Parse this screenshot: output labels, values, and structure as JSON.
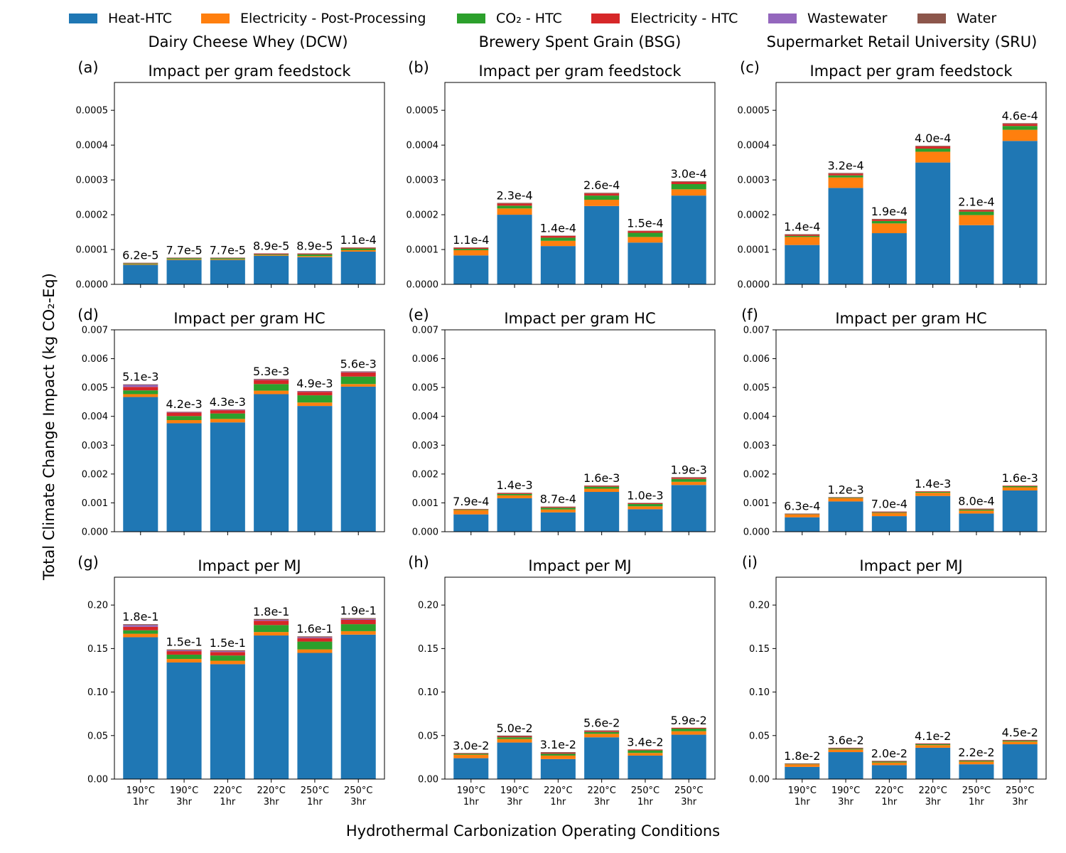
{
  "figure": {
    "ylabel": "Total Climate Change Impact (kg CO₂-Eq)",
    "xlabel": "Hydrothermal Carbonization Operating Conditions"
  },
  "legend": [
    {
      "name": "Heat-HTC",
      "color": "#1f77b4"
    },
    {
      "name": "Electricity - Post-Processing",
      "color": "#ff7f0e"
    },
    {
      "name": "CO₂ - HTC",
      "color": "#2ca02c"
    },
    {
      "name": "Electricity - HTC",
      "color": "#d62728"
    },
    {
      "name": "Wastewater",
      "color": "#9467bd"
    },
    {
      "name": "Water",
      "color": "#8c564b"
    }
  ],
  "columns": [
    "Dairy Cheese Whey (DCW)",
    "Brewery Spent Grain (BSG)",
    "Supermarket Retail University (SRU)"
  ],
  "chart_data": [
    {
      "type": "bar",
      "stacked": true,
      "panel": "(a)",
      "title": "Impact per gram feedstock",
      "categories": [
        "190°C 1hr",
        "190°C 3hr",
        "220°C 1hr",
        "220°C 3hr",
        "250°C 1hr",
        "250°C 3hr"
      ],
      "ylim": [
        0,
        0.00058
      ],
      "yticks": [
        "0.0000",
        "0.0001",
        "0.0002",
        "0.0003",
        "0.0004",
        "0.0005"
      ],
      "ytick_values": [
        0,
        0.0001,
        0.0002,
        0.0003,
        0.0004,
        0.0005
      ],
      "series": [
        {
          "name": "Heat-HTC",
          "values": [
            5.6e-05,
            7e-05,
            7e-05,
            8.2e-05,
            7.8e-05,
            9.4e-05
          ]
        },
        {
          "name": "Electricity - Post-Processing",
          "values": [
            2e-06,
            2e-06,
            2e-06,
            2e-06,
            3e-06,
            4e-06
          ]
        },
        {
          "name": "CO₂ - HTC",
          "values": [
            2e-06,
            3e-06,
            3e-06,
            2e-06,
            5e-06,
            5e-06
          ]
        },
        {
          "name": "Electricity - HTC",
          "values": [
            1e-06,
            1e-06,
            1e-06,
            2e-06,
            2e-06,
            2e-06
          ]
        },
        {
          "name": "Wastewater",
          "values": [
            0,
            0,
            0,
            0,
            0,
            0
          ]
        },
        {
          "name": "Water",
          "values": [
            1e-06,
            1e-06,
            1e-06,
            1e-06,
            1e-06,
            1e-06
          ]
        }
      ],
      "data_labels": [
        "6.2e-5",
        "7.7e-5",
        "7.7e-5",
        "8.9e-5",
        "8.9e-5",
        "1.1e-4"
      ]
    },
    {
      "type": "bar",
      "stacked": true,
      "panel": "(b)",
      "title": "Impact per gram feedstock",
      "categories": [
        "190°C 1hr",
        "190°C 3hr",
        "220°C 1hr",
        "220°C 3hr",
        "250°C 1hr",
        "250°C 3hr"
      ],
      "ylim": [
        0,
        0.00058
      ],
      "yticks": [
        "0.0000",
        "0.0001",
        "0.0002",
        "0.0003",
        "0.0004",
        "0.0005"
      ],
      "ytick_values": [
        0,
        0.0001,
        0.0002,
        0.0003,
        0.0004,
        0.0005
      ],
      "series": [
        {
          "name": "Heat-HTC",
          "values": [
            8.3e-05,
            0.0002,
            0.00011,
            0.000225,
            0.00012,
            0.000255
          ]
        },
        {
          "name": "Electricity - Post-Processing",
          "values": [
            1.5e-05,
            1.8e-05,
            1.5e-05,
            1.8e-05,
            1.6e-05,
            1.8e-05
          ]
        },
        {
          "name": "CO₂ - HTC",
          "values": [
            4e-06,
            8e-06,
            9e-06,
            1.2e-05,
            1.2e-05,
            1.5e-05
          ]
        },
        {
          "name": "Electricity - HTC",
          "values": [
            3e-06,
            6e-06,
            5e-06,
            6e-06,
            5e-06,
            6e-06
          ]
        },
        {
          "name": "Wastewater",
          "values": [
            0,
            0,
            0,
            0,
            0,
            0
          ]
        },
        {
          "name": "Water",
          "values": [
            1e-06,
            2e-06,
            1e-06,
            2e-06,
            1e-06,
            2e-06
          ]
        }
      ],
      "data_labels": [
        "1.1e-4",
        "2.3e-4",
        "1.4e-4",
        "2.6e-4",
        "1.5e-4",
        "3.0e-4"
      ]
    },
    {
      "type": "bar",
      "stacked": true,
      "panel": "(c)",
      "title": "Impact per gram feedstock",
      "categories": [
        "190°C 1hr",
        "190°C 3hr",
        "220°C 1hr",
        "220°C 3hr",
        "250°C 1hr",
        "250°C 3hr"
      ],
      "ylim": [
        0,
        0.00058
      ],
      "yticks": [
        "0.0000",
        "0.0001",
        "0.0002",
        "0.0003",
        "0.0004",
        "0.0005"
      ],
      "ytick_values": [
        0,
        0.0001,
        0.0002,
        0.0003,
        0.0004,
        0.0005
      ],
      "series": [
        {
          "name": "Heat-HTC",
          "values": [
            0.000113,
            0.000277,
            0.000147,
            0.00035,
            0.00017,
            0.000412
          ]
        },
        {
          "name": "Electricity - Post-Processing",
          "values": [
            2.3e-05,
            3e-05,
            2.8e-05,
            3.1e-05,
            2.9e-05,
            3.2e-05
          ]
        },
        {
          "name": "CO₂ - HTC",
          "values": [
            3e-06,
            6e-06,
            7e-06,
            9e-06,
            1e-05,
            1.1e-05
          ]
        },
        {
          "name": "Electricity - HTC",
          "values": [
            3e-06,
            5e-06,
            4e-06,
            6e-06,
            4e-06,
            6e-06
          ]
        },
        {
          "name": "Wastewater",
          "values": [
            0,
            0,
            0,
            0,
            0,
            0
          ]
        },
        {
          "name": "Water",
          "values": [
            2e-06,
            2e-06,
            2e-06,
            2e-06,
            2e-06,
            2e-06
          ]
        }
      ],
      "data_labels": [
        "1.4e-4",
        "3.2e-4",
        "1.9e-4",
        "4.0e-4",
        "2.1e-4",
        "4.6e-4"
      ]
    },
    {
      "type": "bar",
      "stacked": true,
      "panel": "(d)",
      "title": "Impact per gram HC",
      "categories": [
        "190°C 1hr",
        "190°C 3hr",
        "220°C 1hr",
        "220°C 3hr",
        "250°C 1hr",
        "250°C 3hr"
      ],
      "ylim": [
        0,
        0.007
      ],
      "yticks": [
        "0.000",
        "0.001",
        "0.002",
        "0.003",
        "0.004",
        "0.005",
        "0.006",
        "0.007"
      ],
      "ytick_values": [
        0,
        0.001,
        0.002,
        0.003,
        0.004,
        0.005,
        0.006,
        0.007
      ],
      "series": [
        {
          "name": "Heat-HTC",
          "values": [
            0.00467,
            0.00376,
            0.00379,
            0.00477,
            0.00436,
            0.00503
          ]
        },
        {
          "name": "Electricity - Post-Processing",
          "values": [
            0.0001,
            0.00011,
            0.00012,
            0.00012,
            0.00012,
            9e-05
          ]
        },
        {
          "name": "CO₂ - HTC",
          "values": [
            0.00013,
            0.00014,
            0.00019,
            0.00023,
            0.00025,
            0.00026
          ]
        },
        {
          "name": "Electricity - HTC",
          "values": [
            0.00012,
            0.00012,
            0.00011,
            0.00014,
            0.00012,
            0.00014
          ]
        },
        {
          "name": "Wastewater",
          "values": [
            7e-05,
            2e-05,
            2e-05,
            2e-05,
            2e-05,
            2e-05
          ]
        },
        {
          "name": "Water",
          "values": [
            2e-05,
            1e-05,
            1e-05,
            2e-05,
            1e-05,
            2e-05
          ]
        }
      ],
      "data_labels": [
        "5.1e-3",
        "4.2e-3",
        "4.3e-3",
        "5.3e-3",
        "4.9e-3",
        "5.6e-3"
      ]
    },
    {
      "type": "bar",
      "stacked": true,
      "panel": "(e)",
      "title": "Impact per gram HC",
      "categories": [
        "190°C 1hr",
        "190°C 3hr",
        "220°C 1hr",
        "220°C 3hr",
        "250°C 1hr",
        "250°C 3hr"
      ],
      "ylim": [
        0,
        0.007
      ],
      "yticks": [
        "0.000",
        "0.001",
        "0.002",
        "0.003",
        "0.004",
        "0.005",
        "0.006",
        "0.007"
      ],
      "ytick_values": [
        0,
        0.001,
        0.002,
        0.003,
        0.004,
        0.005,
        0.006,
        0.007
      ],
      "series": [
        {
          "name": "Heat-HTC",
          "values": [
            0.0006,
            0.00116,
            0.00067,
            0.00138,
            0.00078,
            0.00162
          ]
        },
        {
          "name": "Electricity - Post-Processing",
          "values": [
            0.00015,
            0.0001,
            0.0001,
            0.00011,
            0.0001,
            0.00011
          ]
        },
        {
          "name": "CO₂ - HTC",
          "values": [
            2e-05,
            5e-05,
            6e-05,
            7e-05,
            8e-05,
            0.0001
          ]
        },
        {
          "name": "Electricity - HTC",
          "values": [
            1e-05,
            3e-05,
            3e-05,
            3e-05,
            3e-05,
            4e-05
          ]
        },
        {
          "name": "Wastewater",
          "values": [
            0,
            0,
            0,
            0,
            0,
            0
          ]
        },
        {
          "name": "Water",
          "values": [
            1e-05,
            1e-05,
            1e-05,
            1e-05,
            1e-05,
            2e-05
          ]
        }
      ],
      "data_labels": [
        "7.9e-4",
        "1.4e-3",
        "8.7e-4",
        "1.6e-3",
        "1.0e-3",
        "1.9e-3"
      ]
    },
    {
      "type": "bar",
      "stacked": true,
      "panel": "(f)",
      "title": "Impact per gram HC",
      "categories": [
        "190°C 1hr",
        "190°C 3hr",
        "220°C 1hr",
        "220°C 3hr",
        "250°C 1hr",
        "250°C 3hr"
      ],
      "ylim": [
        0,
        0.007
      ],
      "yticks": [
        "0.000",
        "0.001",
        "0.002",
        "0.003",
        "0.004",
        "0.005",
        "0.006",
        "0.007"
      ],
      "ytick_values": [
        0,
        0.001,
        0.002,
        0.003,
        0.004,
        0.005,
        0.006,
        0.007
      ],
      "series": [
        {
          "name": "Heat-HTC",
          "values": [
            0.0005,
            0.00105,
            0.00054,
            0.00124,
            0.00063,
            0.00143
          ]
        },
        {
          "name": "Electricity - Post-Processing",
          "values": [
            0.0001,
            0.00011,
            0.00011,
            0.00011,
            0.0001,
            0.00011
          ]
        },
        {
          "name": "CO₂ - HTC",
          "values": [
            1e-05,
            2e-05,
            2e-05,
            3e-05,
            4e-05,
            4e-05
          ]
        },
        {
          "name": "Electricity - HTC",
          "values": [
            1e-05,
            1e-05,
            2e-05,
            2e-05,
            2e-05,
            2e-05
          ]
        },
        {
          "name": "Wastewater",
          "values": [
            0,
            0,
            0,
            0,
            0,
            0
          ]
        },
        {
          "name": "Water",
          "values": [
            1e-05,
            1e-05,
            1e-05,
            0,
            1e-05,
            0
          ]
        }
      ],
      "data_labels": [
        "6.3e-4",
        "1.2e-3",
        "7.0e-4",
        "1.4e-3",
        "8.0e-4",
        "1.6e-3"
      ]
    },
    {
      "type": "bar",
      "stacked": true,
      "panel": "(g)",
      "title": "Impact per MJ",
      "categories": [
        "190°C 1hr",
        "190°C 3hr",
        "220°C 1hr",
        "220°C 3hr",
        "250°C 1hr",
        "250°C 3hr"
      ],
      "ylim": [
        0,
        0.232
      ],
      "yticks": [
        "0.00",
        "0.05",
        "0.10",
        "0.15",
        "0.20"
      ],
      "ytick_values": [
        0,
        0.05,
        0.1,
        0.15,
        0.2
      ],
      "series": [
        {
          "name": "Heat-HTC",
          "values": [
            0.163,
            0.134,
            0.132,
            0.165,
            0.145,
            0.166
          ]
        },
        {
          "name": "Electricity - Post-Processing",
          "values": [
            0.004,
            0.004,
            0.004,
            0.004,
            0.004,
            0.004
          ]
        },
        {
          "name": "CO₂ - HTC",
          "values": [
            0.004,
            0.005,
            0.006,
            0.008,
            0.009,
            0.008
          ]
        },
        {
          "name": "Electricity - HTC",
          "values": [
            0.004,
            0.004,
            0.004,
            0.005,
            0.004,
            0.005
          ]
        },
        {
          "name": "Wastewater",
          "values": [
            0.002,
            0.001,
            0.001,
            0.001,
            0.001,
            0.001
          ]
        },
        {
          "name": "Water",
          "values": [
            0.001,
            0.001,
            0.001,
            0.001,
            0.001,
            0.001
          ]
        }
      ],
      "data_labels": [
        "1.8e-1",
        "1.5e-1",
        "1.5e-1",
        "1.8e-1",
        "1.6e-1",
        "1.9e-1"
      ]
    },
    {
      "type": "bar",
      "stacked": true,
      "panel": "(h)",
      "title": "Impact per MJ",
      "categories": [
        "190°C 1hr",
        "190°C 3hr",
        "220°C 1hr",
        "220°C 3hr",
        "250°C 1hr",
        "250°C 3hr"
      ],
      "ylim": [
        0,
        0.232
      ],
      "yticks": [
        "0.00",
        "0.05",
        "0.10",
        "0.15",
        "0.20"
      ],
      "ytick_values": [
        0,
        0.05,
        0.1,
        0.15,
        0.2
      ],
      "series": [
        {
          "name": "Heat-HTC",
          "values": [
            0.024,
            0.042,
            0.023,
            0.048,
            0.027,
            0.051
          ]
        },
        {
          "name": "Electricity - Post-Processing",
          "values": [
            0.004,
            0.004,
            0.004,
            0.004,
            0.003,
            0.004
          ]
        },
        {
          "name": "CO₂ - HTC",
          "values": [
            0.001,
            0.002,
            0.002,
            0.002,
            0.003,
            0.003
          ]
        },
        {
          "name": "Electricity - HTC",
          "values": [
            0.0005,
            0.001,
            0.001,
            0.001,
            0.001,
            0.001
          ]
        },
        {
          "name": "Wastewater",
          "values": [
            0,
            0,
            0,
            0,
            0,
            0
          ]
        },
        {
          "name": "Water",
          "values": [
            0.0005,
            0.001,
            0.001,
            0.001,
            0,
            0
          ]
        }
      ],
      "data_labels": [
        "3.0e-2",
        "5.0e-2",
        "3.1e-2",
        "5.6e-2",
        "3.4e-2",
        "5.9e-2"
      ]
    },
    {
      "type": "bar",
      "stacked": true,
      "panel": "(i)",
      "title": "Impact per MJ",
      "categories": [
        "190°C 1hr",
        "190°C 3hr",
        "220°C 1hr",
        "220°C 3hr",
        "250°C 1hr",
        "250°C 3hr"
      ],
      "ylim": [
        0,
        0.232
      ],
      "yticks": [
        "0.00",
        "0.05",
        "0.10",
        "0.15",
        "0.20"
      ],
      "ytick_values": [
        0,
        0.05,
        0.1,
        0.15,
        0.2
      ],
      "series": [
        {
          "name": "Heat-HTC",
          "values": [
            0.014,
            0.031,
            0.016,
            0.036,
            0.017,
            0.04
          ]
        },
        {
          "name": "Electricity - Post-Processing",
          "values": [
            0.003,
            0.003,
            0.003,
            0.003,
            0.003,
            0.003
          ]
        },
        {
          "name": "CO₂ - HTC",
          "values": [
            0.0005,
            0.001,
            0.001,
            0.001,
            0.001,
            0.001
          ]
        },
        {
          "name": "Electricity - HTC",
          "values": [
            0.0003,
            0.0005,
            0.0005,
            0.0005,
            0.0005,
            0.0005
          ]
        },
        {
          "name": "Wastewater",
          "values": [
            0,
            0,
            0,
            0,
            0,
            0
          ]
        },
        {
          "name": "Water",
          "values": [
            0.0002,
            0.0005,
            0.0005,
            0.0005,
            0.0005,
            0.0005
          ]
        }
      ],
      "data_labels": [
        "1.8e-2",
        "3.6e-2",
        "2.0e-2",
        "4.1e-2",
        "2.2e-2",
        "4.5e-2"
      ]
    }
  ]
}
